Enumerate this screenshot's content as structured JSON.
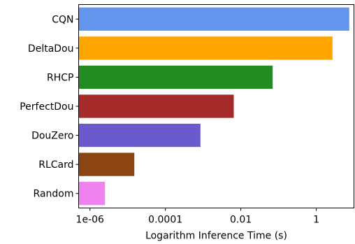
{
  "chart_data": {
    "type": "bar",
    "orientation": "horizontal",
    "title": "",
    "xlabel": "Logarithm Inference Time (s)",
    "ylabel": "",
    "xscale": "log",
    "xlim": [
      5e-07,
      10
    ],
    "x_ticks": [
      1e-06,
      0.0001,
      0.01,
      1
    ],
    "x_tick_labels": [
      "1e-06",
      "0.0001",
      "0.01",
      "1"
    ],
    "grid": false,
    "legend": "none",
    "categories": [
      "CQN",
      "DeltaDou",
      "RHCP",
      "PerfectDou",
      "DouZero",
      "RLCard",
      "Random"
    ],
    "values": [
      7.5,
      2.7,
      0.07,
      0.0065,
      0.00085,
      1.5e-05,
      2.5e-06
    ],
    "colors": [
      "#6495ed",
      "#ffa500",
      "#228b22",
      "#a52a2a",
      "#6a5acd",
      "#8b4513",
      "#ee82ee"
    ]
  }
}
